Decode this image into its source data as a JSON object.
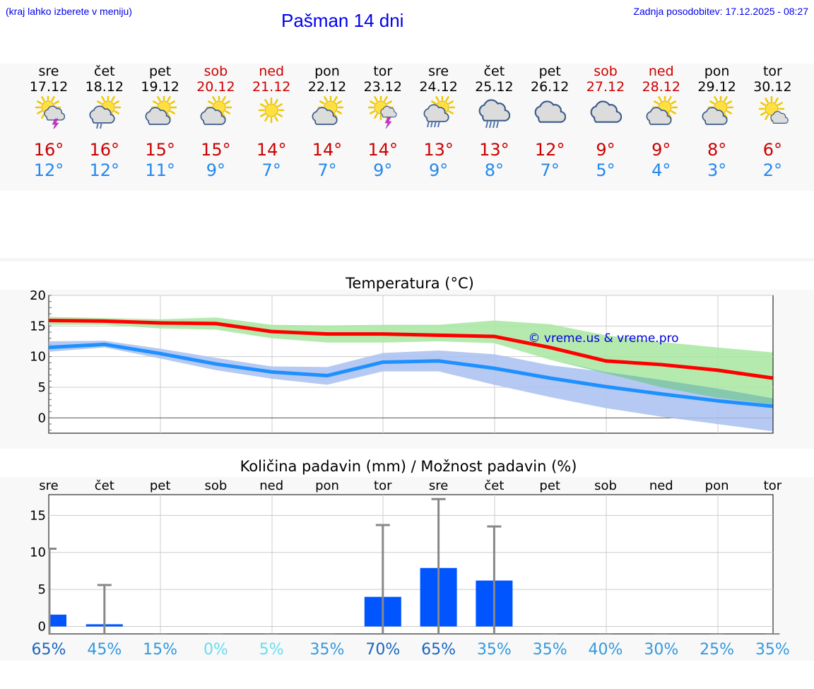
{
  "header": {
    "menu_hint": "(kraj lahko izberete v meniju)",
    "title": "Pašman 14 dni",
    "updated": "Zadnja posodobitev: 17.12.2025 - 08:27"
  },
  "days": [
    {
      "name": "sre",
      "date": "17.12",
      "weekend": false,
      "icon": "sun-cloud-storm-icon",
      "tmax": "16°",
      "tmin": "12°"
    },
    {
      "name": "čet",
      "date": "18.12",
      "weekend": false,
      "icon": "sun-cloud-rain-icon",
      "tmax": "16°",
      "tmin": "12°"
    },
    {
      "name": "pet",
      "date": "19.12",
      "weekend": false,
      "icon": "sun-cloud-icon",
      "tmax": "15°",
      "tmin": "11°"
    },
    {
      "name": "sob",
      "date": "20.12",
      "weekend": true,
      "icon": "sun-cloud-icon",
      "tmax": "15°",
      "tmin": "9°"
    },
    {
      "name": "ned",
      "date": "21.12",
      "weekend": true,
      "icon": "sun-icon",
      "tmax": "14°",
      "tmin": "7°"
    },
    {
      "name": "pon",
      "date": "22.12",
      "weekend": false,
      "icon": "sun-cloud-icon",
      "tmax": "14°",
      "tmin": "7°"
    },
    {
      "name": "tor",
      "date": "23.12",
      "weekend": false,
      "icon": "sun-storm-icon",
      "tmax": "14°",
      "tmin": "9°"
    },
    {
      "name": "sre",
      "date": "24.12",
      "weekend": false,
      "icon": "sun-cloud-heavy-rain-icon",
      "tmax": "13°",
      "tmin": "9°"
    },
    {
      "name": "čet",
      "date": "25.12",
      "weekend": false,
      "icon": "cloud-rain-icon",
      "tmax": "13°",
      "tmin": "8°"
    },
    {
      "name": "pet",
      "date": "26.12",
      "weekend": false,
      "icon": "cloud-icon",
      "tmax": "12°",
      "tmin": "7°"
    },
    {
      "name": "sob",
      "date": "27.12",
      "weekend": true,
      "icon": "cloud-icon",
      "tmax": "9°",
      "tmin": "5°"
    },
    {
      "name": "ned",
      "date": "28.12",
      "weekend": true,
      "icon": "sun-cloud-icon",
      "tmax": "9°",
      "tmin": "4°"
    },
    {
      "name": "pon",
      "date": "29.12",
      "weekend": false,
      "icon": "sun-cloud-icon",
      "tmax": "8°",
      "tmin": "3°"
    },
    {
      "name": "tor",
      "date": "30.12",
      "weekend": false,
      "icon": "sun-small-cloud-icon",
      "tmax": "6°",
      "tmin": "2°"
    }
  ],
  "colors": {
    "max_line": "#ff0000",
    "min_line": "#1e90ff",
    "max_band": "#a8e6a0",
    "min_band": "#a8c0f0",
    "overlap_band": "#7cc8a0",
    "precip_bar": "#0055ff",
    "whisker": "#888888",
    "weekend_text": "#cc0000",
    "tmin_text": "#2288ee"
  },
  "chart_data": [
    {
      "type": "line",
      "title": "Temperatura (°C)",
      "watermark": "© vreme.us & vreme.pro",
      "ylim": [
        -2.5,
        20
      ],
      "yticks": [
        0,
        5,
        10,
        15,
        20
      ],
      "x": [
        0,
        1,
        2,
        3,
        4,
        5,
        6,
        7,
        8,
        9,
        10,
        11,
        12,
        13
      ],
      "series": [
        {
          "name": "max",
          "values": [
            15.9,
            15.8,
            15.5,
            15.4,
            14.1,
            13.7,
            13.7,
            13.5,
            13.3,
            11.5,
            9.3,
            8.7,
            7.8,
            6.5
          ],
          "band_low": [
            15.2,
            15.2,
            14.6,
            14.4,
            13.0,
            12.3,
            12.3,
            12.5,
            12.2,
            9.5,
            7.3,
            5.0,
            3.3,
            2.2
          ],
          "band_high": [
            16.5,
            16.3,
            16.1,
            16.4,
            15.2,
            15.1,
            15.2,
            15.2,
            15.9,
            15.3,
            13.5,
            12.4,
            11.5,
            10.7
          ]
        },
        {
          "name": "min",
          "values": [
            11.5,
            12.0,
            10.5,
            8.8,
            7.5,
            6.9,
            9.1,
            9.3,
            8.1,
            6.5,
            5.1,
            3.9,
            2.8,
            1.9
          ],
          "band_low": [
            10.8,
            11.5,
            9.7,
            7.8,
            6.4,
            5.4,
            7.6,
            7.6,
            5.4,
            3.4,
            1.6,
            0.2,
            -1.0,
            -2.2
          ],
          "band_high": [
            12.5,
            12.6,
            11.3,
            9.8,
            8.4,
            8.3,
            10.6,
            11.0,
            10.4,
            8.6,
            7.5,
            6.2,
            4.8,
            3.2
          ]
        }
      ]
    },
    {
      "type": "bar",
      "title": "Količina padavin (mm) / Možnost padavin (%)",
      "categories": [
        "sre",
        "čet",
        "pet",
        "sob",
        "ned",
        "pon",
        "tor",
        "sre",
        "čet",
        "pet",
        "sob",
        "ned",
        "pon",
        "tor"
      ],
      "ylim": [
        -1,
        17.8
      ],
      "yticks": [
        0,
        5,
        10,
        15
      ],
      "values": [
        1.6,
        0.3,
        0,
        0,
        0,
        0,
        4.0,
        7.9,
        6.2,
        0,
        0,
        0,
        0,
        0
      ],
      "max_values": [
        10.5,
        5.6,
        0,
        0,
        0,
        0,
        13.7,
        17.2,
        13.5,
        0,
        0,
        0,
        0,
        0
      ],
      "probability": [
        "65%",
        "45%",
        "15%",
        "0%",
        "5%",
        "35%",
        "70%",
        "65%",
        "35%",
        "35%",
        "40%",
        "30%",
        "25%",
        "35%"
      ],
      "probability_colors": [
        "#1a66bb",
        "#3399dd",
        "#3399dd",
        "#66ddee",
        "#66ddee",
        "#3399dd",
        "#1a66bb",
        "#1a66bb",
        "#3399dd",
        "#3399dd",
        "#3399dd",
        "#3399dd",
        "#3399dd",
        "#3399dd"
      ]
    }
  ]
}
